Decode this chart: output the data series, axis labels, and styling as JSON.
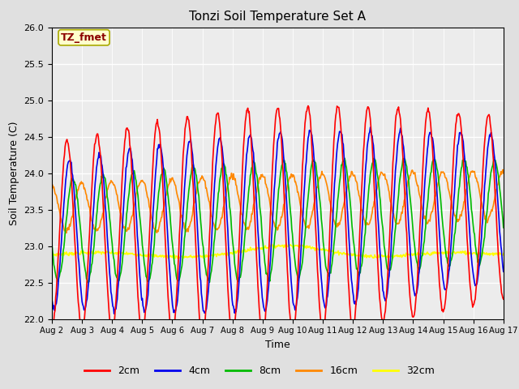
{
  "title": "Tonzi Soil Temperature Set A",
  "xlabel": "Time",
  "ylabel": "Soil Temperature (C)",
  "ylim": [
    22.0,
    26.0
  ],
  "yticks": [
    22.0,
    22.5,
    23.0,
    23.5,
    24.0,
    24.5,
    25.0,
    25.5,
    26.0
  ],
  "xtick_labels": [
    "Aug 2",
    "Aug 3",
    "Aug 4",
    "Aug 5",
    "Aug 6",
    "Aug 7",
    "Aug 8",
    "Aug 9",
    "Aug 10",
    "Aug 11",
    "Aug 12",
    "Aug 13",
    "Aug 14",
    "Aug 15",
    "Aug 16",
    "Aug 17"
  ],
  "annotation_text": "TZ_fmet",
  "annotation_color": "#8B0000",
  "annotation_bg": "#FFFFCC",
  "annotation_edge": "#AAAA00",
  "colors": {
    "2cm": "#FF0000",
    "4cm": "#0000EE",
    "8cm": "#00BB00",
    "16cm": "#FF8800",
    "32cm": "#FFFF00"
  },
  "line_width": 1.2,
  "fig_bg": "#E0E0E0",
  "plot_bg": "#ECECEC",
  "n_points": 720,
  "period_days": 1.0,
  "base_temp": 23.5,
  "amplitudes": {
    "2cm": 1.25,
    "4cm": 1.0,
    "8cm": 0.68,
    "16cm": 0.3,
    "32cm": 0.06
  },
  "phase_shifts": {
    "2cm": 0.0,
    "4cm": 0.08,
    "8cm": 0.2,
    "16cm": 0.45,
    "32cm": 0.0
  },
  "dc_offsets": {
    "2cm": -0.35,
    "4cm": -0.35,
    "8cm": -0.28,
    "16cm": 0.0,
    "32cm": -0.62
  },
  "drift": {
    "2cm": 0.025,
    "4cm": 0.025,
    "8cm": 0.018,
    "16cm": 0.015,
    "32cm": 0.003
  },
  "amp_grow": {
    "2cm": 0.25,
    "4cm": 0.22,
    "8cm": 0.18,
    "16cm": 0.0,
    "32cm": 0.0
  },
  "legend_labels": [
    "2cm",
    "4cm",
    "8cm",
    "16cm",
    "32cm"
  ]
}
